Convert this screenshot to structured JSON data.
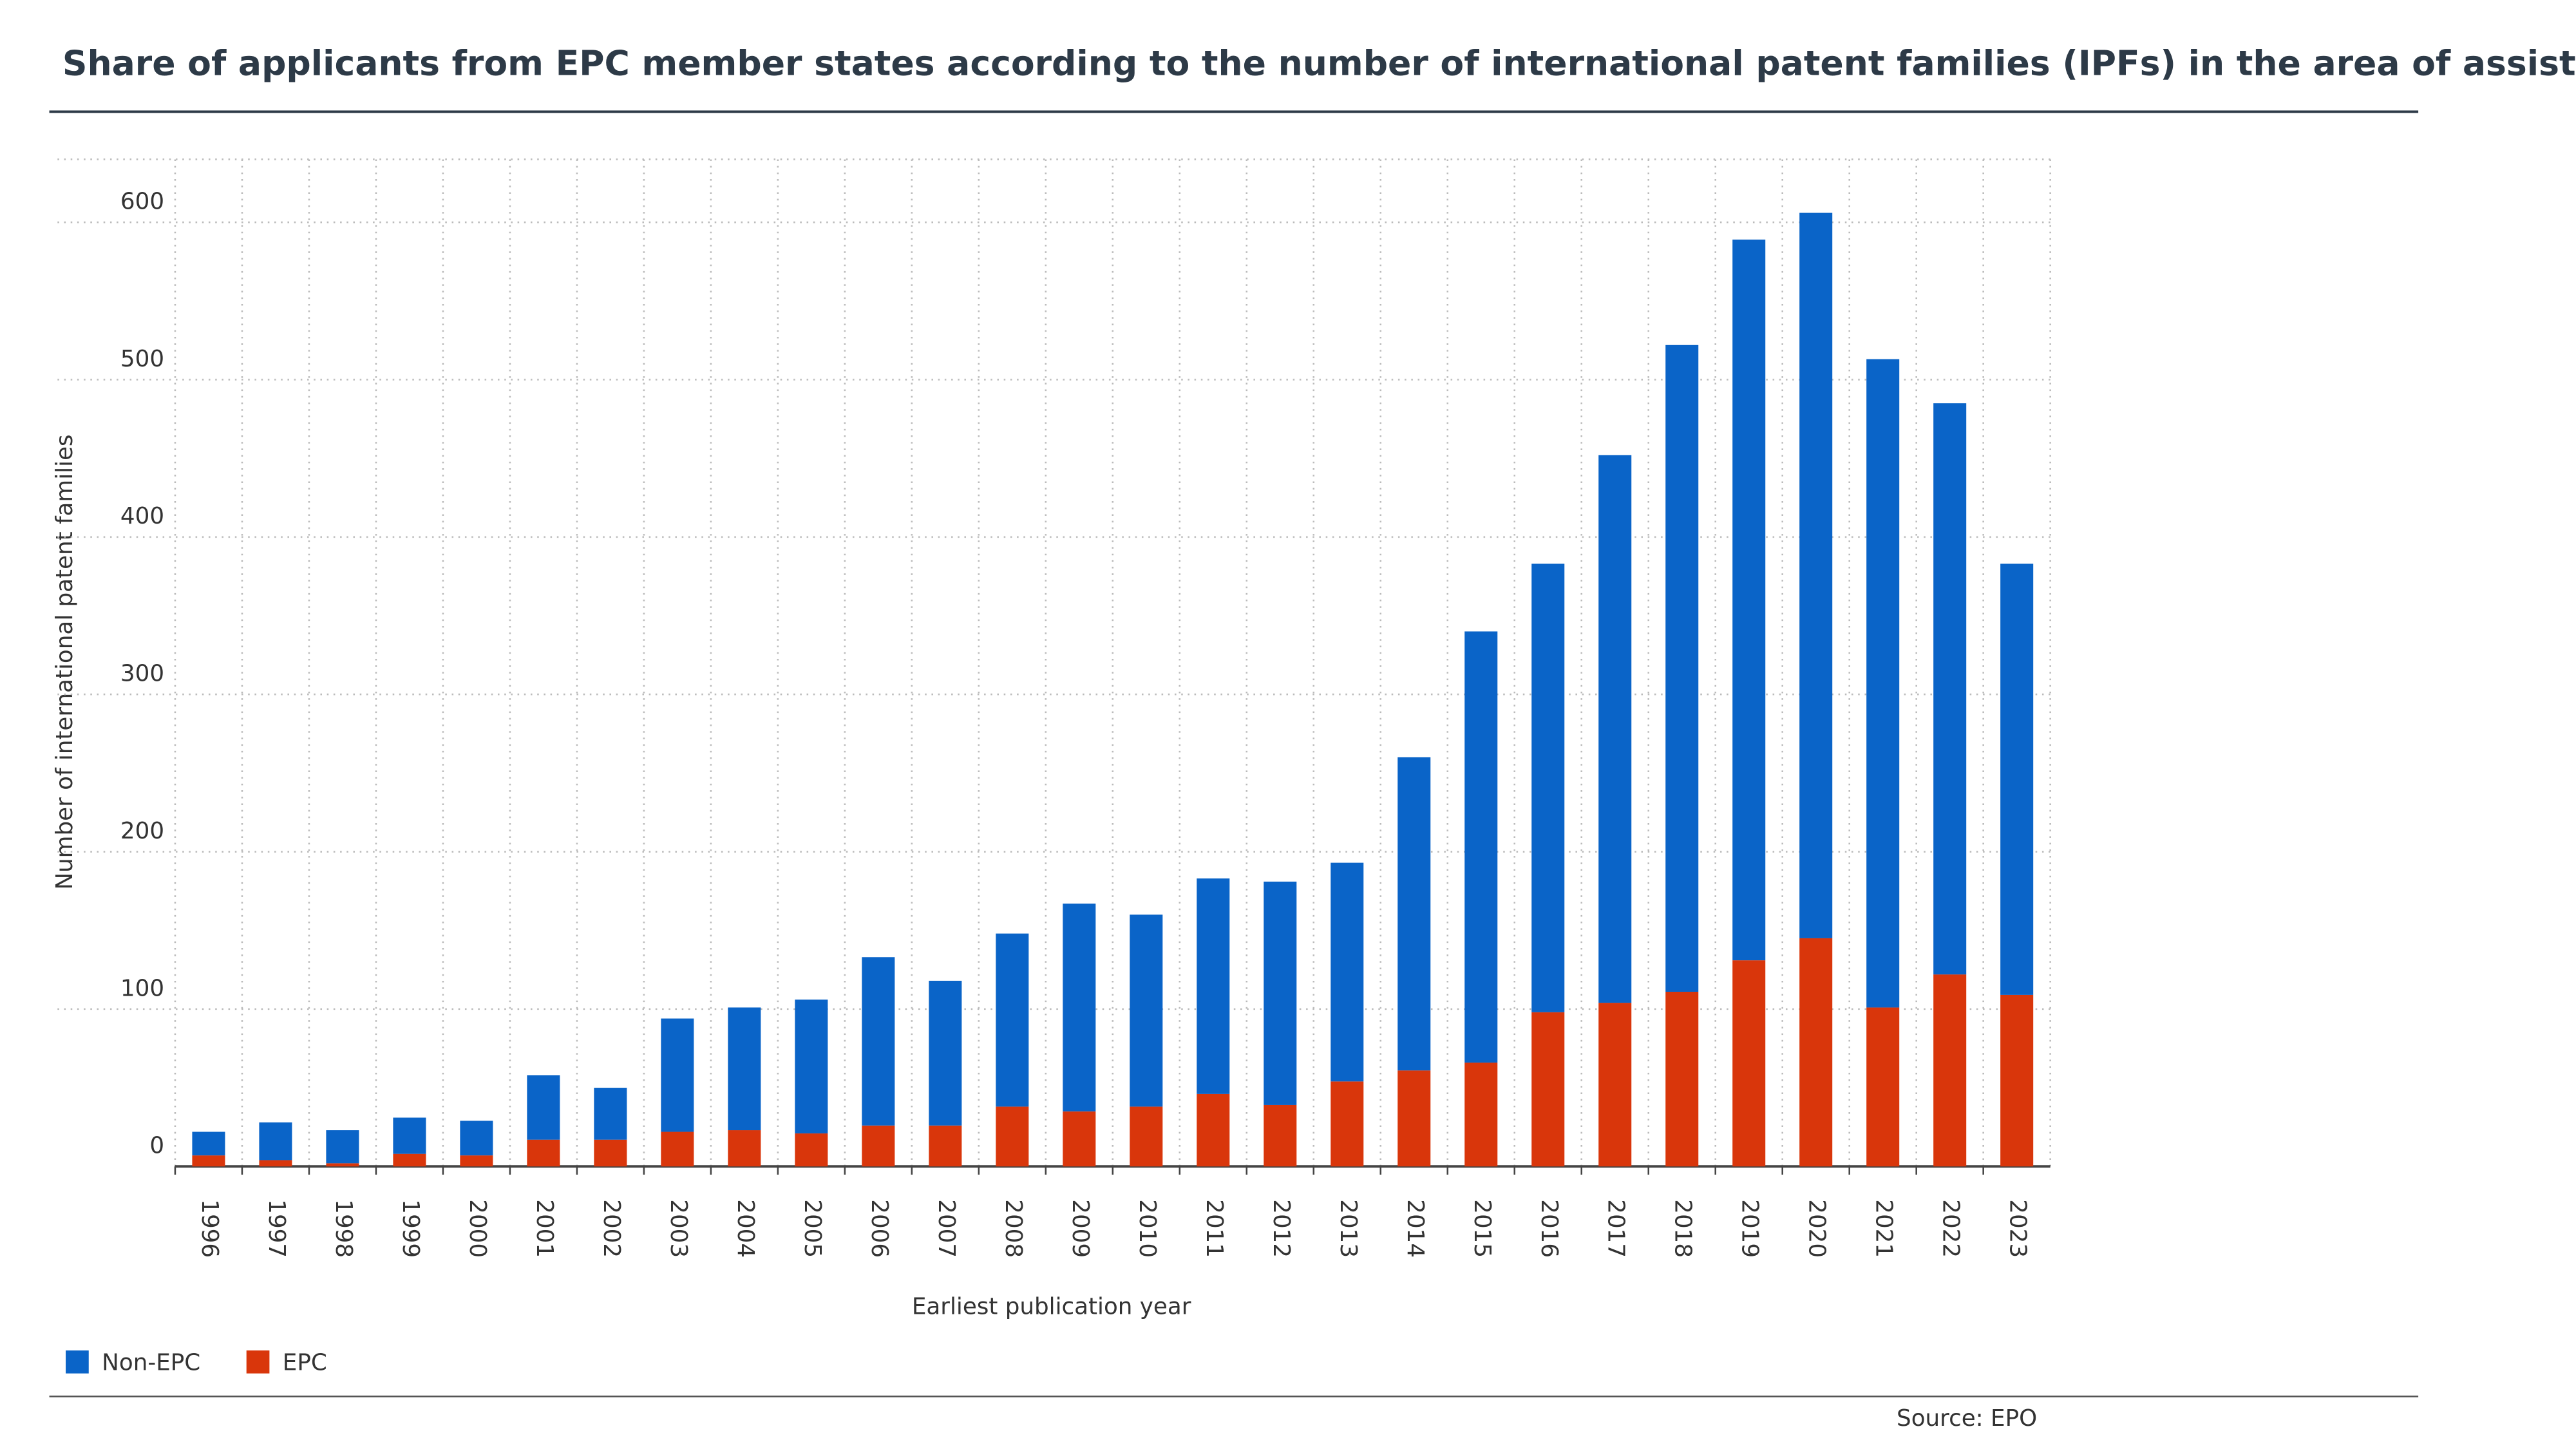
{
  "chart_data": {
    "type": "stacked_bar",
    "title": "Share of applicants from EPC member states according to the number of international patent families (IPFs) in the area of assistive robotics",
    "x_label": "Earliest publication year",
    "y_label": "Number of international patent families",
    "source": "Source: EPO",
    "categories": [
      "1996",
      "1997",
      "1998",
      "1999",
      "2000",
      "2001",
      "2002",
      "2003",
      "2004",
      "2005",
      "2006",
      "2007",
      "2008",
      "2009",
      "2010",
      "2011",
      "2012",
      "2013",
      "2014",
      "2015",
      "2016",
      "2017",
      "2018",
      "2019",
      "2020",
      "2021",
      "2022",
      "2023"
    ],
    "series": [
      {
        "name": "Non-EPC",
        "color": "#0a64c8",
        "values": [
          15,
          24,
          21,
          23,
          22,
          41,
          33,
          72,
          78,
          85,
          107,
          92,
          110,
          132,
          122,
          137,
          142,
          139,
          199,
          274,
          285,
          348,
          411,
          458,
          461,
          412,
          363,
          274
        ]
      },
      {
        "name": "EPC",
        "color": "#d9360b",
        "values": [
          7,
          4,
          2,
          8,
          7,
          17,
          17,
          22,
          23,
          21,
          26,
          26,
          38,
          35,
          38,
          46,
          39,
          54,
          61,
          66,
          98,
          104,
          111,
          131,
          145,
          101,
          122,
          109
        ]
      }
    ],
    "ylim": [
      0,
      640
    ],
    "yticks": [
      0,
      100,
      200,
      300,
      400,
      500,
      600
    ],
    "grid": true
  }
}
